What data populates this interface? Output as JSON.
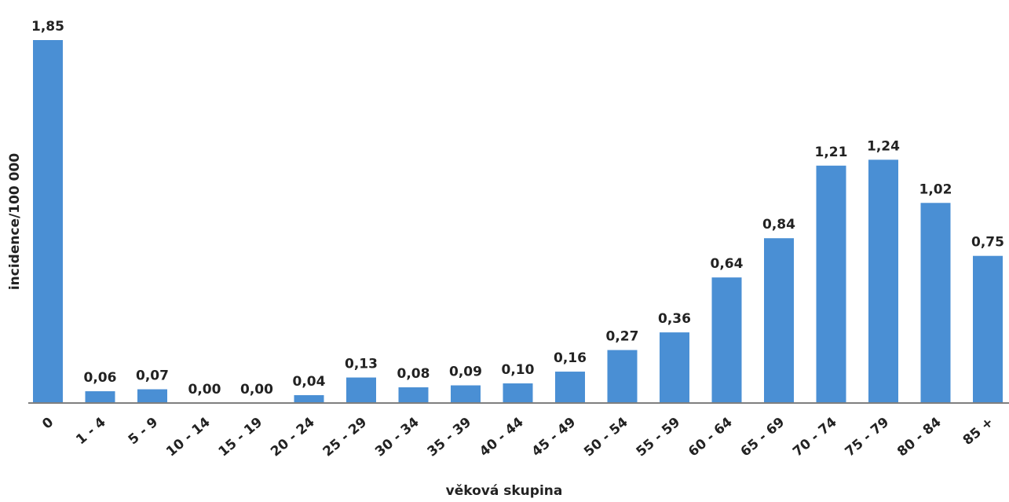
{
  "chart_data": {
    "type": "bar",
    "xlabel": "věková skupina",
    "ylabel": "incidence/100 000",
    "ylim": [
      0,
      1.85
    ],
    "grid": false,
    "bar_color": "#4a8fd4",
    "axis_color": "#7f7f7f",
    "categories": [
      "0",
      "1 - 4",
      "5 - 9",
      "10 - 14",
      "15 - 19",
      "20 - 24",
      "25 - 29",
      "30 - 34",
      "35 - 39",
      "40 - 44",
      "45 - 49",
      "50 - 54",
      "55 - 59",
      "60 - 64",
      "65 - 69",
      "70 - 74",
      "75 - 79",
      "80 - 84",
      "85 +"
    ],
    "values": [
      1.85,
      0.06,
      0.07,
      0.0,
      0.0,
      0.04,
      0.13,
      0.08,
      0.09,
      0.1,
      0.16,
      0.27,
      0.36,
      0.64,
      0.84,
      1.21,
      1.24,
      1.02,
      0.75
    ],
    "value_labels": [
      "1,85",
      "0,06",
      "0,07",
      "0,00",
      "0,00",
      "0,04",
      "0,13",
      "0,08",
      "0,09",
      "0,10",
      "0,16",
      "0,27",
      "0,36",
      "0,64",
      "0,84",
      "1,21",
      "1,24",
      "1,02",
      "0,75"
    ]
  }
}
